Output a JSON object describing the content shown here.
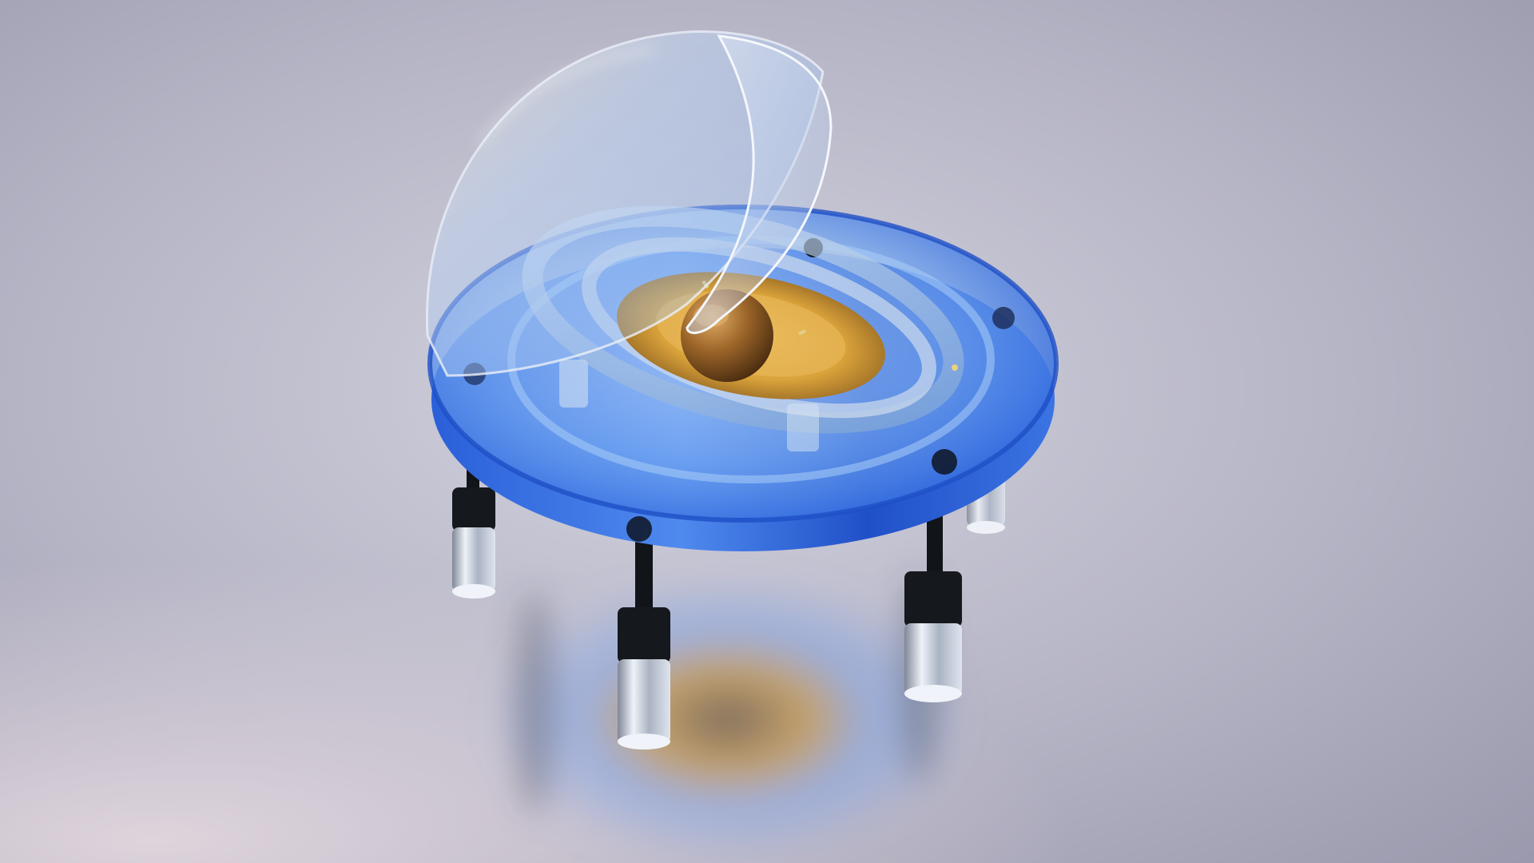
{
  "scene": {
    "subject": "glass-planetary-model-on-stand",
    "colors": {
      "backdrop_light": "#d6d5df",
      "backdrop_mid": "#b0afc0",
      "backdrop_dark": "#9a99ac",
      "floor_warm": "#cfc6d2",
      "glass_blue": "#2f6be0",
      "glass_blue_light": "#86b8f5",
      "dome_tint": "#c9d4e8",
      "planet_brown": "#8a5a22",
      "planet_highlight": "#d9a257",
      "disk_gold": "#d9a23a",
      "leg_black": "#111418",
      "leg_glass": "#cfd6e2"
    }
  }
}
